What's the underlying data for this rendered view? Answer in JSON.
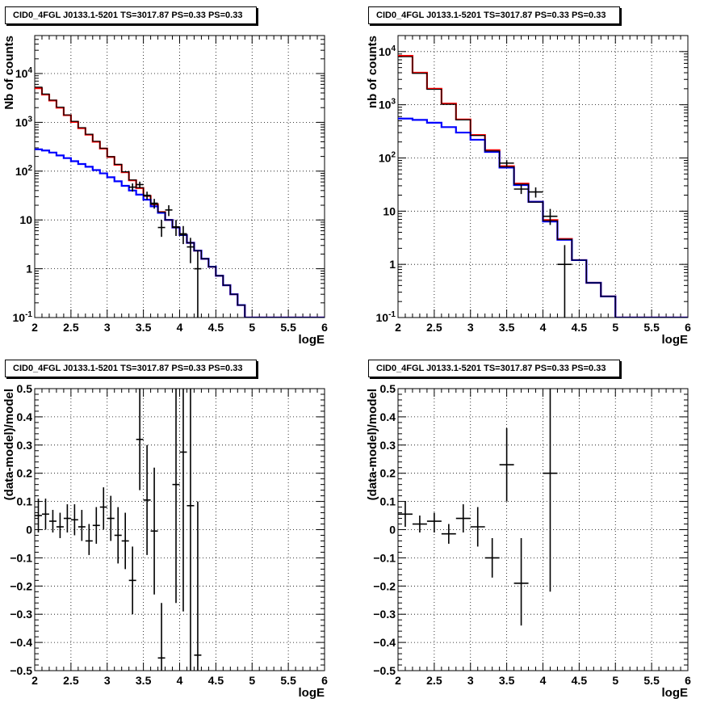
{
  "colors": {
    "total": "#ff0000",
    "background": "#0000ff",
    "data": "#000000",
    "grid": "#000000"
  },
  "chart_data": [
    {
      "type": "line",
      "title": "CID0_4FGL J0133.1-5201 TS=3017.87 PS=0.33 PS=0.33",
      "xlabel": "logE",
      "ylabel": "Nb of counts",
      "xlim": [
        2,
        6
      ],
      "ylim": [
        0.1,
        60000
      ],
      "yscale": "log",
      "grid": true,
      "xticks": [
        "2",
        "2.5",
        "3",
        "3.5",
        "4",
        "4.5",
        "5",
        "5.5",
        "6"
      ],
      "yticks": [
        "10^{-1}",
        "1",
        "10",
        "10^{2}",
        "10^{3}",
        "10^{4}"
      ],
      "series": [
        {
          "style": "step-red",
          "edges": [
            2,
            2.1,
            2.2,
            2.3,
            2.4,
            2.5,
            2.6,
            2.7,
            2.8,
            2.9,
            3,
            3.1,
            3.2,
            3.3,
            3.4,
            3.5,
            3.6,
            3.7,
            3.8,
            3.9,
            4,
            4.1,
            4.2,
            4.3,
            4.4,
            4.5,
            4.6,
            4.7,
            4.8,
            4.9,
            5,
            5.1,
            5.2,
            5.3,
            5.4,
            5.5,
            5.6,
            5.7,
            5.8,
            5.9,
            6
          ],
          "values": [
            5000,
            3700,
            2800,
            2000,
            1400,
            1020,
            760,
            560,
            400,
            290,
            195,
            135,
            95,
            65,
            45,
            31,
            21,
            14.5,
            10,
            7,
            4.9,
            3.4,
            2.35,
            1.6,
            1.1,
            0.72,
            0.46,
            0.3,
            0.18,
            0.1,
            0.1,
            0.1,
            0.1,
            0.1,
            0.1,
            0.1,
            0.1,
            0.1,
            0.1,
            0.1
          ]
        },
        {
          "style": "step-blue",
          "edges": [
            2,
            2.1,
            2.2,
            2.3,
            2.4,
            2.5,
            2.6,
            2.7,
            2.8,
            2.9,
            3,
            3.1,
            3.2,
            3.3,
            3.4,
            3.5,
            3.6,
            3.7,
            3.8,
            3.9,
            4,
            4.1,
            4.2,
            4.3,
            4.4,
            4.5,
            4.6,
            4.7,
            4.8,
            4.9,
            5,
            5.1,
            5.2,
            5.3,
            5.4,
            5.5,
            5.6,
            5.7,
            5.8,
            5.9,
            6
          ],
          "values": [
            280,
            265,
            240,
            210,
            185,
            160,
            140,
            123,
            105,
            90,
            75,
            62,
            50,
            40,
            33,
            26,
            19,
            14,
            10,
            7,
            4.9,
            3.4,
            2.35,
            1.6,
            1.1,
            0.72,
            0.46,
            0.3,
            0.18,
            0.1,
            0.1,
            0.1,
            0.1,
            0.1,
            0.1,
            0.1,
            0.1,
            0.1,
            0.1,
            0.1
          ]
        },
        {
          "style": "step-black",
          "edges": [
            2,
            2.1,
            2.2,
            2.3,
            2.4,
            2.5,
            2.6,
            2.7,
            2.8,
            2.9,
            3,
            3.1,
            3.2,
            3.3,
            3.4,
            3.5,
            3.6,
            3.7,
            3.8,
            3.9,
            4,
            4.1,
            4.2,
            4.3,
            4.4,
            4.5,
            4.6,
            4.7,
            4.8,
            4.9,
            5,
            5.1,
            5.2,
            5.3,
            5.4,
            5.5,
            5.6,
            5.7,
            5.8,
            5.9,
            6
          ],
          "values": [
            5250,
            3800,
            2850,
            2050,
            1420,
            1050,
            780,
            570,
            410,
            295,
            198,
            138,
            97,
            66,
            46,
            31,
            21,
            14.5,
            10,
            7,
            4.9,
            3.4,
            2.35,
            1.6,
            1.1,
            0.72,
            0.46,
            0.3,
            0.18,
            0.1,
            0.1,
            0.1,
            0.1,
            0.1,
            0.1,
            0.1,
            0.1,
            0.1,
            0.1,
            0.1
          ]
        }
      ],
      "points": [
        {
          "x": 3.35,
          "y": 47,
          "ylo": 38,
          "yhi": 56
        },
        {
          "x": 3.45,
          "y": 53,
          "ylo": 45,
          "yhi": 61
        },
        {
          "x": 3.55,
          "y": 32,
          "ylo": 26,
          "yhi": 38
        },
        {
          "x": 3.65,
          "y": 22,
          "ylo": 17,
          "yhi": 27
        },
        {
          "x": 3.75,
          "y": 7,
          "ylo": 4.5,
          "yhi": 10
        },
        {
          "x": 3.85,
          "y": 16,
          "ylo": 12,
          "yhi": 20
        },
        {
          "x": 3.95,
          "y": 7.2,
          "ylo": 4.7,
          "yhi": 10
        },
        {
          "x": 4.05,
          "y": 5.2,
          "ylo": 3.2,
          "yhi": 7.5
        },
        {
          "x": 4.15,
          "y": 2.8,
          "ylo": 1.3,
          "yhi": 4.3
        },
        {
          "x": 4.25,
          "y": 1,
          "ylo": 0.1,
          "yhi": 2.3
        }
      ]
    },
    {
      "type": "line",
      "title": "CID0_4FGL J0133.1-5201 TS=3017.87 PS=0.33 PS=0.33",
      "xlabel": "logE",
      "ylabel": "nb of counts",
      "xlim": [
        2,
        6
      ],
      "ylim": [
        0.1,
        20000
      ],
      "yscale": "log",
      "grid": true,
      "xticks": [
        "2",
        "2.5",
        "3",
        "3.5",
        "4",
        "4.5",
        "5",
        "5.5",
        "6"
      ],
      "yticks": [
        "10^{-1}",
        "1",
        "10",
        "10^{2}",
        "10^{3}",
        "10^{4}"
      ],
      "series": [
        {
          "style": "step-red",
          "edges": [
            2,
            2.2,
            2.4,
            2.6,
            2.8,
            3,
            3.2,
            3.4,
            3.6,
            3.8,
            4,
            4.2,
            4.4,
            4.6,
            4.8,
            5,
            5.2,
            5.4,
            5.6,
            5.8,
            6
          ],
          "values": [
            8300,
            4000,
            2000,
            1050,
            530,
            270,
            140,
            70,
            33,
            15,
            6.8,
            3,
            1.2,
            0.45,
            0.25,
            0.1,
            0.1,
            0.1,
            0.1,
            0.1
          ]
        },
        {
          "style": "step-blue",
          "edges": [
            2,
            2.2,
            2.4,
            2.6,
            2.8,
            3,
            3.2,
            3.4,
            3.6,
            3.8,
            4,
            4.2,
            4.4,
            4.6,
            4.8,
            5,
            5.2,
            5.4,
            5.6,
            5.8,
            6
          ],
          "values": [
            550,
            520,
            460,
            380,
            300,
            220,
            130,
            66,
            31,
            15,
            6.4,
            2.9,
            1.2,
            0.45,
            0.25,
            0.1,
            0.1,
            0.1,
            0.1,
            0.1
          ]
        },
        {
          "style": "step-black",
          "edges": [
            2,
            2.2,
            2.4,
            2.6,
            2.8,
            3,
            3.2,
            3.4,
            3.6,
            3.8,
            4,
            4.2,
            4.4,
            4.6,
            4.8,
            5,
            5.2,
            5.4,
            5.6,
            5.8,
            6
          ],
          "values": [
            8000,
            3900,
            1950,
            1020,
            520,
            265,
            135,
            68,
            32,
            14.8,
            6.6,
            2.95,
            1.2,
            0.45,
            0.25,
            0.1,
            0.1,
            0.1,
            0.1,
            0.1
          ]
        }
      ],
      "points": [
        {
          "x": 3.5,
          "y": 80,
          "ylo": 70,
          "yhi": 91
        },
        {
          "x": 3.7,
          "y": 26,
          "ylo": 21,
          "yhi": 31
        },
        {
          "x": 3.9,
          "y": 23,
          "ylo": 18,
          "yhi": 28
        },
        {
          "x": 4.1,
          "y": 8,
          "ylo": 5.5,
          "yhi": 11
        },
        {
          "x": 4.3,
          "y": 1,
          "ylo": 0.1,
          "yhi": 2.3
        }
      ]
    },
    {
      "type": "scatter",
      "title": "CID0_4FGL J0133.1-5201 TS=3017.87 PS=0.33 PS=0.33",
      "xlabel": "logE",
      "ylabel": "(data-model)/model",
      "xlim": [
        2,
        6
      ],
      "ylim": [
        -0.5,
        0.5
      ],
      "yscale": "linear",
      "grid": true,
      "xticks": [
        "2",
        "2.5",
        "3",
        "3.5",
        "4",
        "4.5",
        "5",
        "5.5",
        "6"
      ],
      "yticks": [
        "−0.5",
        "−0.4",
        "−0.3",
        "−0.2",
        "−0.1",
        "0",
        "0.1",
        "0.2",
        "0.3",
        "0.4",
        "0.5"
      ],
      "points": [
        {
          "x": 2.05,
          "y": 0.05,
          "ylo": -0.01,
          "yhi": 0.11
        },
        {
          "x": 2.15,
          "y": 0.055,
          "ylo": 0.0,
          "yhi": 0.11
        },
        {
          "x": 2.25,
          "y": 0.03,
          "ylo": -0.01,
          "yhi": 0.07
        },
        {
          "x": 2.35,
          "y": 0.01,
          "ylo": -0.03,
          "yhi": 0.06
        },
        {
          "x": 2.45,
          "y": 0.04,
          "ylo": -0.01,
          "yhi": 0.09
        },
        {
          "x": 2.55,
          "y": 0.035,
          "ylo": -0.02,
          "yhi": 0.09
        },
        {
          "x": 2.65,
          "y": 0.01,
          "ylo": -0.04,
          "yhi": 0.07
        },
        {
          "x": 2.75,
          "y": -0.04,
          "ylo": -0.09,
          "yhi": 0.02
        },
        {
          "x": 2.85,
          "y": 0.015,
          "ylo": -0.05,
          "yhi": 0.08
        },
        {
          "x": 2.95,
          "y": 0.08,
          "ylo": 0.0,
          "yhi": 0.15
        },
        {
          "x": 3.05,
          "y": 0.04,
          "ylo": -0.04,
          "yhi": 0.12
        },
        {
          "x": 3.15,
          "y": -0.02,
          "ylo": -0.12,
          "yhi": 0.08
        },
        {
          "x": 3.25,
          "y": -0.04,
          "ylo": -0.14,
          "yhi": 0.06
        },
        {
          "x": 3.35,
          "y": -0.18,
          "ylo": -0.3,
          "yhi": -0.06
        },
        {
          "x": 3.45,
          "y": 0.32,
          "ylo": 0.14,
          "yhi": 0.5
        },
        {
          "x": 3.55,
          "y": 0.105,
          "ylo": -0.09,
          "yhi": 0.3
        },
        {
          "x": 3.65,
          "y": -0.005,
          "ylo": -0.23,
          "yhi": 0.22
        },
        {
          "x": 3.75,
          "y": -0.455,
          "ylo": -0.5,
          "yhi": -0.26
        },
        {
          "x": 3.95,
          "y": 0.16,
          "ylo": -0.26,
          "yhi": 0.5
        },
        {
          "x": 4.05,
          "y": 0.275,
          "ylo": -0.29,
          "yhi": 0.5
        },
        {
          "x": 4.15,
          "y": 0.085,
          "ylo": -0.5,
          "yhi": 0.5
        },
        {
          "x": 4.25,
          "y": -0.445,
          "ylo": -0.5,
          "yhi": 0.1
        }
      ]
    },
    {
      "type": "scatter",
      "title": "CID0_4FGL J0133.1-5201 TS=3017.87 PS=0.33 PS=0.33",
      "xlabel": "logE",
      "ylabel": "(data-model)/model",
      "xlim": [
        2,
        6
      ],
      "ylim": [
        -0.5,
        0.5
      ],
      "yscale": "linear",
      "grid": true,
      "xticks": [
        "2",
        "2.5",
        "3",
        "3.5",
        "4",
        "4.5",
        "5",
        "5.5",
        "6"
      ],
      "yticks": [
        "−0.5",
        "−0.4",
        "−0.3",
        "−0.2",
        "−0.1",
        "0",
        "0.1",
        "0.2",
        "0.3",
        "0.4",
        "0.5"
      ],
      "points": [
        {
          "x": 2.1,
          "y": 0.055,
          "ylo": 0.01,
          "yhi": 0.1
        },
        {
          "x": 2.3,
          "y": 0.02,
          "ylo": -0.01,
          "yhi": 0.05
        },
        {
          "x": 2.5,
          "y": 0.03,
          "ylo": -0.01,
          "yhi": 0.06
        },
        {
          "x": 2.7,
          "y": -0.015,
          "ylo": -0.05,
          "yhi": 0.02
        },
        {
          "x": 2.9,
          "y": 0.04,
          "ylo": -0.01,
          "yhi": 0.09
        },
        {
          "x": 3.1,
          "y": 0.01,
          "ylo": -0.06,
          "yhi": 0.08
        },
        {
          "x": 3.3,
          "y": -0.1,
          "ylo": -0.17,
          "yhi": -0.03
        },
        {
          "x": 3.5,
          "y": 0.23,
          "ylo": 0.1,
          "yhi": 0.36
        },
        {
          "x": 3.7,
          "y": -0.19,
          "ylo": -0.34,
          "yhi": -0.03
        },
        {
          "x": 4.1,
          "y": 0.2,
          "ylo": -0.22,
          "yhi": 0.5
        }
      ]
    }
  ]
}
